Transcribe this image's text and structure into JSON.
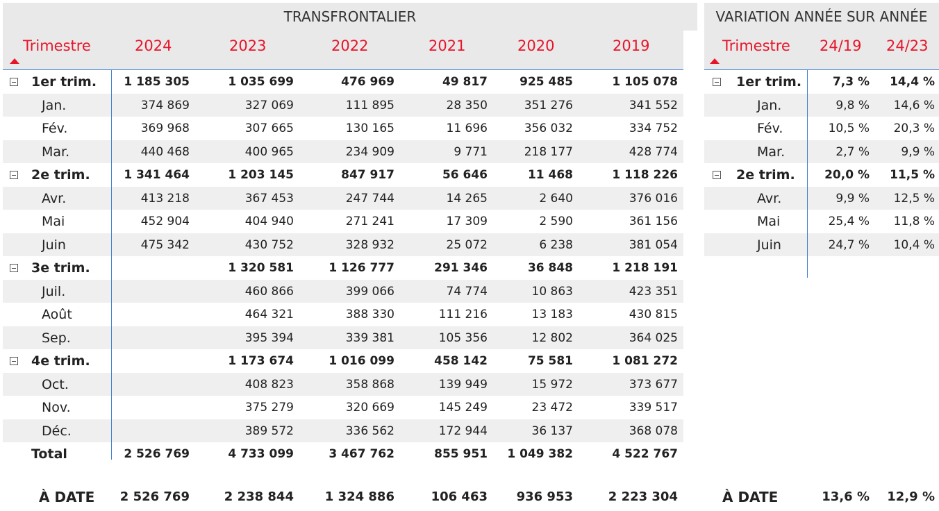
{
  "left_table": {
    "title": "TRANSFRONTALIER",
    "row_header": "Trimestre",
    "columns": [
      "2024",
      "2023",
      "2022",
      "2021",
      "2020",
      "2019"
    ],
    "rows": [
      {
        "label": "1er trim.",
        "type": "quarter",
        "values": [
          "1 185 305",
          "1 035 699",
          "476 969",
          "49 817",
          "925 485",
          "1 105 078"
        ]
      },
      {
        "label": "Jan.",
        "type": "month",
        "values": [
          "374 869",
          "327 069",
          "111 895",
          "28 350",
          "351 276",
          "341 552"
        ]
      },
      {
        "label": "Fév.",
        "type": "month",
        "values": [
          "369 968",
          "307 665",
          "130 165",
          "11 696",
          "356 032",
          "334 752"
        ]
      },
      {
        "label": "Mar.",
        "type": "month",
        "values": [
          "440 468",
          "400 965",
          "234 909",
          "9 771",
          "218 177",
          "428 774"
        ]
      },
      {
        "label": "2e trim.",
        "type": "quarter",
        "values": [
          "1 341 464",
          "1 203 145",
          "847 917",
          "56 646",
          "11 468",
          "1 118 226"
        ]
      },
      {
        "label": "Avr.",
        "type": "month",
        "values": [
          "413 218",
          "367 453",
          "247 744",
          "14 265",
          "2 640",
          "376 016"
        ]
      },
      {
        "label": "Mai",
        "type": "month",
        "values": [
          "452 904",
          "404 940",
          "271 241",
          "17 309",
          "2 590",
          "361 156"
        ]
      },
      {
        "label": "Juin",
        "type": "month",
        "values": [
          "475 342",
          "430 752",
          "328 932",
          "25 072",
          "6 238",
          "381 054"
        ]
      },
      {
        "label": "3e trim.",
        "type": "quarter",
        "values": [
          "",
          "1 320 581",
          "1 126 777",
          "291 346",
          "36 848",
          "1 218 191"
        ]
      },
      {
        "label": "Juil.",
        "type": "month",
        "values": [
          "",
          "460 866",
          "399 066",
          "74 774",
          "10 863",
          "423 351"
        ]
      },
      {
        "label": "Août",
        "type": "month",
        "values": [
          "",
          "464 321",
          "388 330",
          "111 216",
          "13 183",
          "430 815"
        ]
      },
      {
        "label": "Sep.",
        "type": "month",
        "values": [
          "",
          "395 394",
          "339 381",
          "105 356",
          "12 802",
          "364 025"
        ]
      },
      {
        "label": "4e trim.",
        "type": "quarter",
        "values": [
          "",
          "1 173 674",
          "1 016 099",
          "458 142",
          "75 581",
          "1 081 272"
        ]
      },
      {
        "label": "Oct.",
        "type": "month",
        "values": [
          "",
          "408 823",
          "358 868",
          "139 949",
          "15 972",
          "373 677"
        ]
      },
      {
        "label": "Nov.",
        "type": "month",
        "values": [
          "",
          "375 279",
          "320 669",
          "145 249",
          "23 472",
          "339 517"
        ]
      },
      {
        "label": "Déc.",
        "type": "month",
        "values": [
          "",
          "389 572",
          "336 562",
          "172 944",
          "36 137",
          "368 078"
        ]
      }
    ],
    "total": {
      "label": "Total",
      "values": [
        "2 526 769",
        "4 733 099",
        "3 467 762",
        "855 951",
        "1 049 382",
        "4 522 767"
      ]
    },
    "a_date": {
      "label": "À DATE",
      "values": [
        "2 526 769",
        "2 238 844",
        "1 324 886",
        "106 463",
        "936 953",
        "2 223 304"
      ]
    }
  },
  "right_table": {
    "title": "VARIATION ANNÉE SUR ANNÉE",
    "row_header": "Trimestre",
    "columns": [
      "24/19",
      "24/23"
    ],
    "rows": [
      {
        "label": "1er trim.",
        "type": "quarter",
        "values": [
          "7,3 %",
          "14,4 %"
        ]
      },
      {
        "label": "Jan.",
        "type": "month",
        "values": [
          "9,8 %",
          "14,6 %"
        ]
      },
      {
        "label": "Fév.",
        "type": "month",
        "values": [
          "10,5 %",
          "20,3 %"
        ]
      },
      {
        "label": "Mar.",
        "type": "month",
        "values": [
          "2,7 %",
          "9,9 %"
        ]
      },
      {
        "label": "2e trim.",
        "type": "quarter",
        "values": [
          "20,0 %",
          "11,5 %"
        ]
      },
      {
        "label": "Avr.",
        "type": "month",
        "values": [
          "9,9 %",
          "12,5 %"
        ]
      },
      {
        "label": "Mai",
        "type": "month",
        "values": [
          "25,4 %",
          "11,8 %"
        ]
      },
      {
        "label": "Juin",
        "type": "month",
        "values": [
          "24,7 %",
          "10,4 %"
        ]
      }
    ],
    "a_date": {
      "label": "À DATE",
      "values": [
        "13,6 %",
        "12,9 %"
      ]
    }
  },
  "icons": {
    "expand": "collapse-minus-icon",
    "sort": "sort-ascending-icon"
  },
  "colors": {
    "header_text": "#e8152a",
    "divider": "#3f7fd0",
    "stripe": "#efefef",
    "header_bg": "#e9e9e9"
  }
}
